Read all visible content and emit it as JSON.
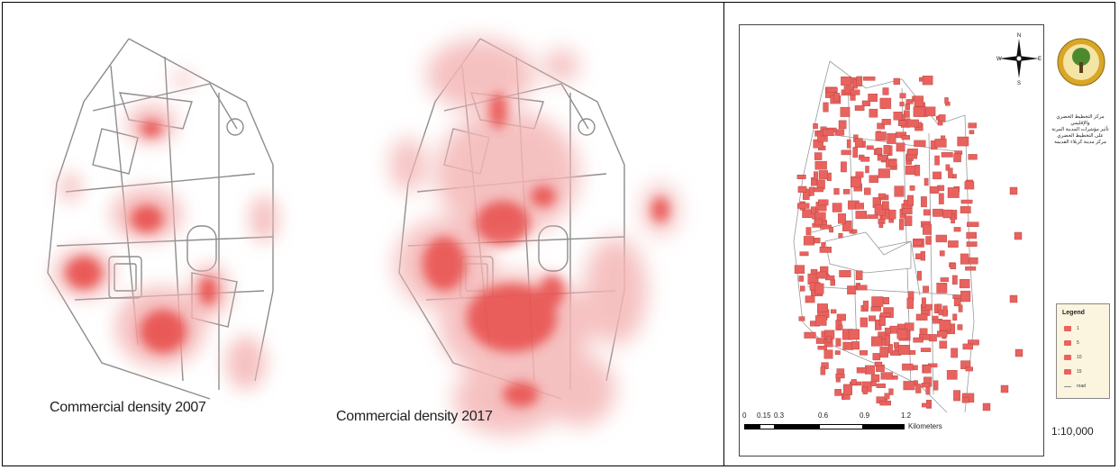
{
  "left_panel": {
    "map_2007": {
      "caption": "Commercial density 2007"
    },
    "map_2017": {
      "caption": "Commercial density 2017"
    }
  },
  "right_panel": {
    "institution_text": [
      "مركز التخطيط الحضري والإقليمي",
      "تأثير مؤشرات المدينة المرنة",
      "على التخطيط الحضري",
      "مركز مدينة كربلاء القديمة"
    ],
    "north_arrow": {
      "n": "N",
      "s": "S",
      "e": "E",
      "w": "W"
    },
    "legend": {
      "title": "Legend",
      "items": [
        {
          "label": "1",
          "symbol": "building-icon"
        },
        {
          "label": "5",
          "symbol": "building-icon"
        },
        {
          "label": "10",
          "symbol": "building-icon"
        },
        {
          "label": "15",
          "symbol": "building-icon"
        },
        {
          "label": "road",
          "symbol": "road-line-icon"
        }
      ]
    },
    "scale_bar": {
      "ticks": [
        "0",
        "0.15",
        "0.3",
        "0.6",
        "0.9",
        "1.2"
      ],
      "unit": "Kilometers"
    },
    "scale_ratio": "1:10,000"
  },
  "colors": {
    "density_red": "#e53935",
    "density_pink": "#f4b6b6",
    "building_red": "#e8625e",
    "road_gray": "#9a9a9a",
    "logo_green": "#4d8a2e",
    "logo_gold": "#d9a627"
  }
}
